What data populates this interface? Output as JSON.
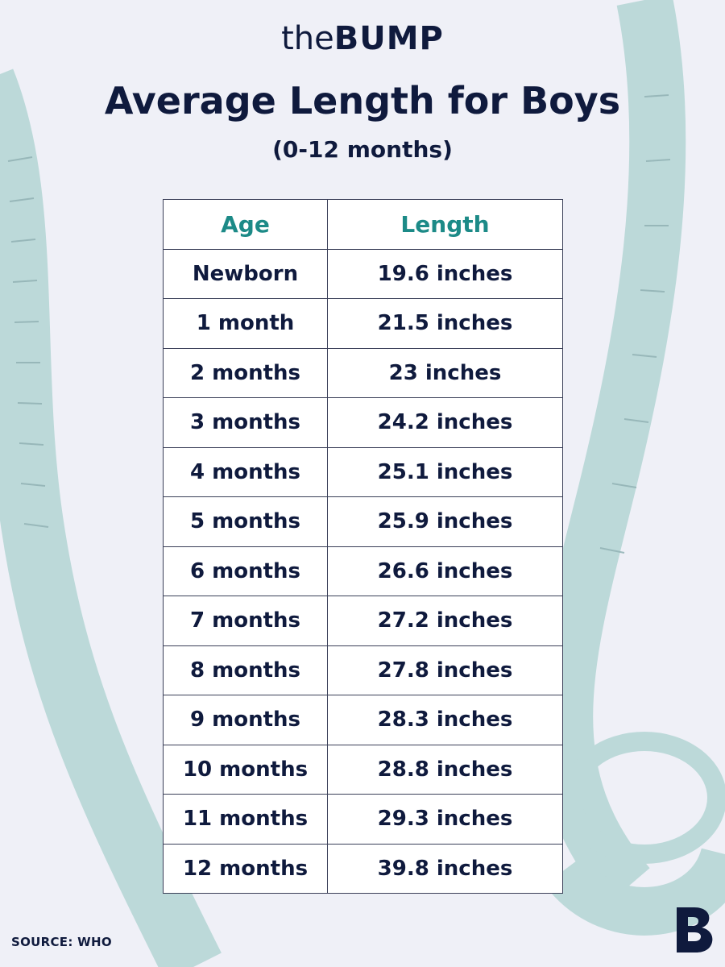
{
  "logo": {
    "prefix": "the",
    "brand": "BUMP"
  },
  "title": "Average Length for Boys",
  "subtitle": "(0-12 months)",
  "chart_data": {
    "type": "table",
    "columns": [
      "Age",
      "Length"
    ],
    "rows": [
      [
        "Newborn",
        "19.6 inches"
      ],
      [
        "1 month",
        "21.5 inches"
      ],
      [
        "2 months",
        "23 inches"
      ],
      [
        "3 months",
        "24.2 inches"
      ],
      [
        "4 months",
        "25.1 inches"
      ],
      [
        "5 months",
        "25.9 inches"
      ],
      [
        "6 months",
        "26.6 inches"
      ],
      [
        "7 months",
        "27.2 inches"
      ],
      [
        "8 months",
        "27.8 inches"
      ],
      [
        "9 months",
        "28.3 inches"
      ],
      [
        "10 months",
        "28.8 inches"
      ],
      [
        "11 months",
        "29.3 inches"
      ],
      [
        "12 months",
        "39.8 inches"
      ]
    ]
  },
  "source": "SOURCE: WHO",
  "colors": {
    "background": "#EFF0F7",
    "text": "#0F1A3D",
    "header_text": "#1C8A87",
    "tape": "#BCD9D9",
    "tape_marks": "#94B4B6"
  },
  "icons": [
    "measuring-tape-icon",
    "bump-brand-icon"
  ]
}
